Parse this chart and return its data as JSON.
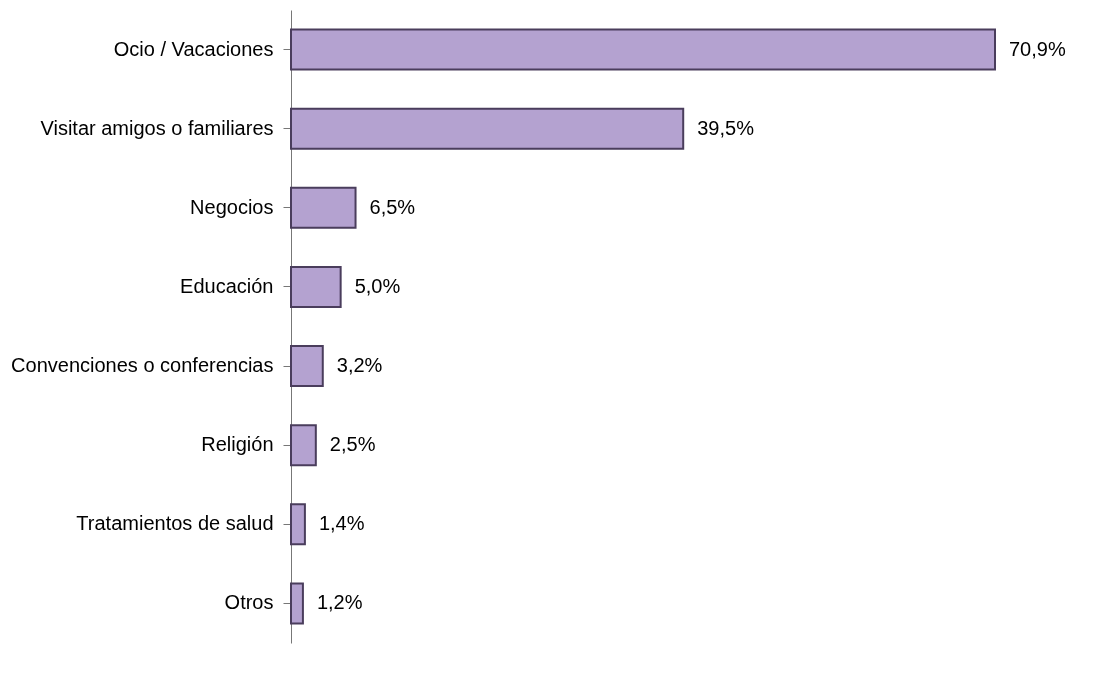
{
  "chart_data": {
    "type": "bar",
    "orientation": "horizontal",
    "categories": [
      "Ocio / Vacaciones",
      "Visitar amigos o familiares",
      "Negocios",
      "Educación",
      "Convenciones o conferencias",
      "Religión",
      "Tratamientos de salud",
      "Otros"
    ],
    "values": [
      70.9,
      39.5,
      6.5,
      5.0,
      3.2,
      2.5,
      1.4,
      1.2
    ],
    "value_labels": [
      "70,9%",
      "39,5%",
      "6,5%",
      "5,0%",
      "3,2%",
      "2,5%",
      "1,4%",
      "1,2%"
    ],
    "color": "#b4a2d0",
    "tick_labels": "y"
  }
}
